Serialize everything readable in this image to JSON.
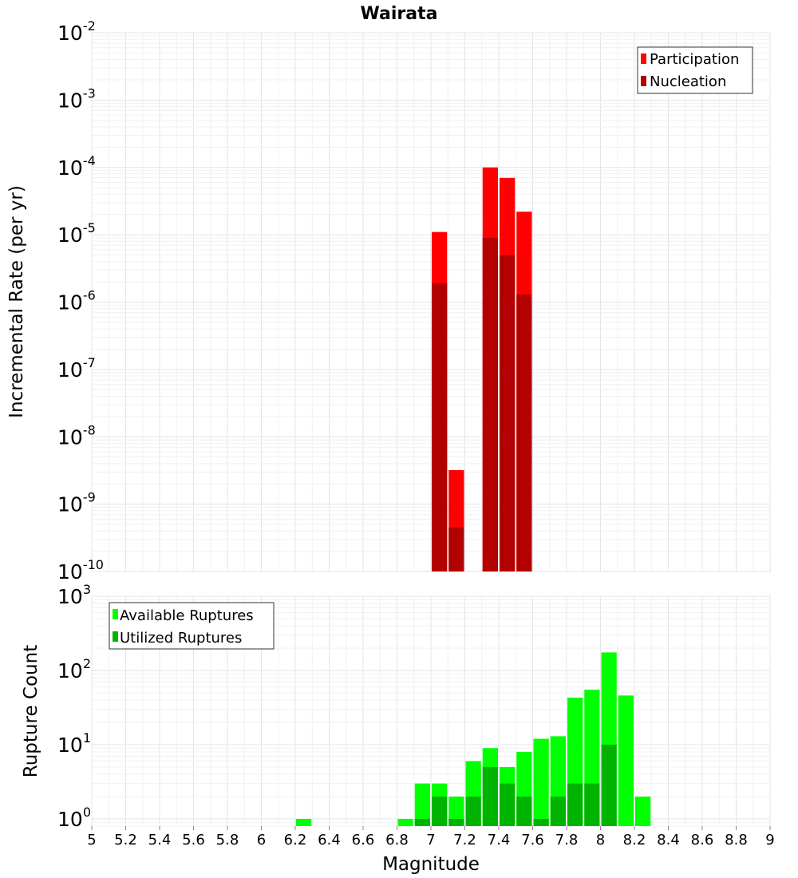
{
  "chart_data": [
    {
      "type": "bar",
      "title": "Wairata",
      "ylabel": "Incremental Rate (per yr)",
      "xlabel": "",
      "y_scale": "log",
      "ylim": [
        1e-10,
        0.01
      ],
      "xlim": [
        5,
        9
      ],
      "grid": true,
      "legend_position": "top-right",
      "bar_width": 0.1,
      "ytick_exponents": [
        "-2",
        "-3",
        "-4",
        "-5",
        "-6",
        "-7",
        "-8",
        "-9",
        "-10"
      ],
      "series": [
        {
          "name": "Participation",
          "color": "#ff0000",
          "x": [
            7.05,
            7.15,
            7.35,
            7.45,
            7.55
          ],
          "values": [
            1.1e-05,
            3.2e-09,
            0.0001,
            7e-05,
            2.2e-05
          ]
        },
        {
          "name": "Nucleation",
          "color": "#b30000",
          "x": [
            7.05,
            7.15,
            7.35,
            7.45,
            7.55
          ],
          "values": [
            1.9e-06,
            4.5e-10,
            9e-06,
            5e-06,
            1.3e-06
          ]
        }
      ]
    },
    {
      "type": "bar",
      "title": "",
      "ylabel": "Rupture Count",
      "xlabel": "Magnitude",
      "y_scale": "log",
      "ylim": [
        0.8,
        1000
      ],
      "xlim": [
        5,
        9
      ],
      "grid": true,
      "legend_position": "top-left",
      "bar_width": 0.1,
      "ytick_exponents": [
        "3",
        "2",
        "1",
        "0"
      ],
      "xtick_labels": [
        "5",
        "5.2",
        "5.4",
        "5.6",
        "5.8",
        "6",
        "6.2",
        "6.4",
        "6.6",
        "6.8",
        "7",
        "7.2",
        "7.4",
        "7.6",
        "7.8",
        "8",
        "8.2",
        "8.4",
        "8.6",
        "8.8",
        "9"
      ],
      "series": [
        {
          "name": "Available Ruptures",
          "color": "#00ff00",
          "x": [
            6.25,
            6.85,
            6.95,
            7.05,
            7.15,
            7.25,
            7.35,
            7.45,
            7.55,
            7.65,
            7.75,
            7.85,
            7.95,
            8.05,
            8.15,
            8.25
          ],
          "values": [
            1,
            1,
            3,
            3,
            2,
            6,
            9,
            5,
            8,
            12,
            13,
            43,
            55,
            175,
            46,
            2
          ]
        },
        {
          "name": "Utilized Ruptures",
          "color": "#00b300",
          "x": [
            6.95,
            7.05,
            7.15,
            7.25,
            7.35,
            7.45,
            7.55,
            7.65,
            7.75,
            7.85,
            7.95,
            8.05
          ],
          "values": [
            1,
            2,
            1,
            2,
            5,
            3,
            2,
            1,
            2,
            3,
            3,
            10
          ]
        }
      ]
    }
  ]
}
